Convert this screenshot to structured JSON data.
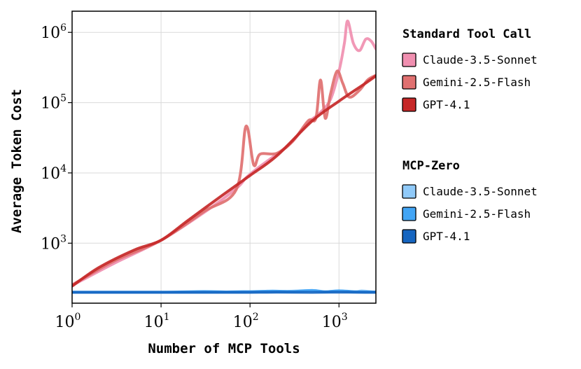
{
  "chart_data": {
    "type": "line",
    "xlabel": "Number of MCP Tools",
    "ylabel": "Average Token Cost",
    "x_scale": "log",
    "y_scale": "log",
    "xlim": [
      1,
      2600
    ],
    "ylim": [
      140,
      2000000
    ],
    "grid": true,
    "legend_position": "right",
    "x_ticks": [
      {
        "value": 1,
        "base": "10",
        "exp": "0"
      },
      {
        "value": 10,
        "base": "10",
        "exp": "1"
      },
      {
        "value": 100,
        "base": "10",
        "exp": "2"
      },
      {
        "value": 1000,
        "base": "10",
        "exp": "3"
      }
    ],
    "y_ticks": [
      {
        "value": 1000,
        "base": "10",
        "exp": "3"
      },
      {
        "value": 10000,
        "base": "10",
        "exp": "4"
      },
      {
        "value": 100000,
        "base": "10",
        "exp": "5"
      },
      {
        "value": 1000000,
        "base": "10",
        "exp": "6"
      }
    ],
    "legend_groups": [
      {
        "title": "Standard Tool Call",
        "entries": [
          "Claude-3.5-Sonnet",
          "Gemini-2.5-Flash",
          "GPT-4.1"
        ]
      },
      {
        "title": "MCP-Zero",
        "entries": [
          "Claude-3.5-Sonnet",
          "Gemini-2.5-Flash",
          "GPT-4.1"
        ]
      }
    ],
    "series": [
      {
        "name": "Claude-3.5-Sonnet",
        "group": "Standard Tool Call",
        "color": "#f08fb0",
        "points": [
          [
            1,
            250
          ],
          [
            3,
            520
          ],
          [
            10,
            1100
          ],
          [
            30,
            2700
          ],
          [
            70,
            6000
          ],
          [
            90,
            8500
          ],
          [
            120,
            11500
          ],
          [
            200,
            18500
          ],
          [
            300,
            28000
          ],
          [
            450,
            52000
          ],
          [
            600,
            70000
          ],
          [
            800,
            110000
          ],
          [
            1000,
            280000
          ],
          [
            1150,
            700000
          ],
          [
            1250,
            1450000
          ],
          [
            1450,
            700000
          ],
          [
            1700,
            550000
          ],
          [
            2000,
            800000
          ],
          [
            2300,
            750000
          ],
          [
            2600,
            580000
          ]
        ]
      },
      {
        "name": "Gemini-2.5-Flash",
        "group": "Standard Tool Call",
        "color": "#e07070",
        "points": [
          [
            1,
            255
          ],
          [
            3,
            560
          ],
          [
            10,
            1100
          ],
          [
            30,
            2800
          ],
          [
            70,
            5800
          ],
          [
            90,
            46000
          ],
          [
            110,
            13000
          ],
          [
            130,
            18500
          ],
          [
            200,
            19000
          ],
          [
            300,
            28000
          ],
          [
            450,
            55000
          ],
          [
            550,
            60000
          ],
          [
            620,
            210000
          ],
          [
            700,
            60000
          ],
          [
            800,
            130000
          ],
          [
            950,
            280000
          ],
          [
            1100,
            190000
          ],
          [
            1300,
            120000
          ],
          [
            1700,
            150000
          ],
          [
            2100,
            210000
          ],
          [
            2600,
            245000
          ]
        ]
      },
      {
        "name": "GPT-4.1",
        "group": "Standard Tool Call",
        "color": "#c62828",
        "points": [
          [
            1,
            245
          ],
          [
            2,
            450
          ],
          [
            5,
            800
          ],
          [
            10,
            1100
          ],
          [
            20,
            2100
          ],
          [
            50,
            4900
          ],
          [
            100,
            9200
          ],
          [
            200,
            17500
          ],
          [
            500,
            55000
          ],
          [
            1000,
            105000
          ],
          [
            2000,
            190000
          ],
          [
            2600,
            240000
          ]
        ]
      },
      {
        "name": "Claude-3.5-Sonnet",
        "group": "MCP-Zero",
        "color": "#90caf9",
        "points": [
          [
            1,
            200
          ],
          [
            10,
            200
          ],
          [
            40,
            201
          ],
          [
            80,
            205
          ],
          [
            150,
            203
          ],
          [
            250,
            206
          ],
          [
            500,
            212
          ],
          [
            700,
            204
          ],
          [
            1000,
            210
          ],
          [
            1500,
            202
          ],
          [
            1800,
            209
          ],
          [
            2600,
            200
          ]
        ]
      },
      {
        "name": "Gemini-2.5-Flash",
        "group": "MCP-Zero",
        "color": "#42a5f5",
        "points": [
          [
            1,
            201
          ],
          [
            10,
            201
          ],
          [
            30,
            205
          ],
          [
            60,
            202
          ],
          [
            100,
            204
          ],
          [
            180,
            208
          ],
          [
            300,
            205
          ],
          [
            500,
            212
          ],
          [
            700,
            203
          ],
          [
            1000,
            210
          ],
          [
            1500,
            204
          ],
          [
            2600,
            202
          ]
        ]
      },
      {
        "name": "GPT-4.1",
        "group": "MCP-Zero",
        "color": "#1565c0",
        "points": [
          [
            1,
            200
          ],
          [
            10,
            200
          ],
          [
            50,
            200
          ],
          [
            100,
            200
          ],
          [
            200,
            201
          ],
          [
            500,
            200
          ],
          [
            1000,
            201
          ],
          [
            2000,
            200
          ],
          [
            2600,
            200
          ]
        ]
      }
    ]
  }
}
